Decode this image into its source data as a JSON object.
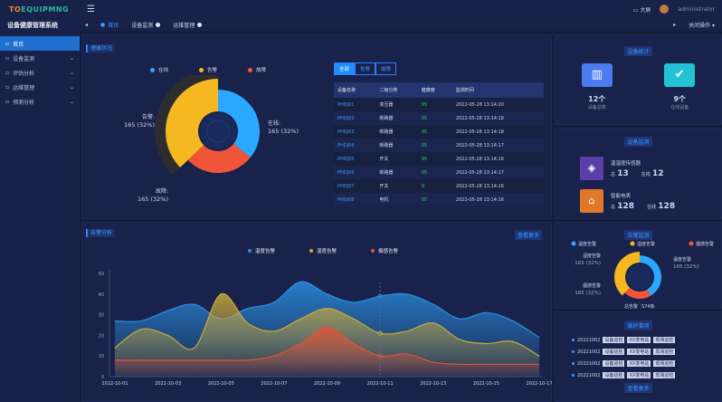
{
  "app": {
    "logo_a": "TO",
    "logo_b": "EQUIPMNG",
    "title": "设备健康管理系统"
  },
  "sidebar": {
    "items": [
      {
        "label": "首页",
        "active": true
      },
      {
        "label": "设备监测"
      },
      {
        "label": "评估分析"
      },
      {
        "label": "运维管理"
      },
      {
        "label": "预测分析"
      }
    ]
  },
  "header": {
    "bigscreen": "大屏",
    "username": "administrator",
    "close_ops": "关闭操作 ▾"
  },
  "tabs": [
    {
      "label": "首页"
    },
    {
      "label": "设备监测"
    },
    {
      "label": "运维管理"
    }
  ],
  "health": {
    "title": "健康状况",
    "legend": [
      "在线",
      "告警",
      "故障"
    ],
    "slices": [
      {
        "name": "在线",
        "value": 165,
        "pct": "32%"
      },
      {
        "name": "告警",
        "value": 165,
        "pct": "32%"
      },
      {
        "name": "故障",
        "value": 165,
        "pct": "32%"
      }
    ],
    "filters": [
      "全部",
      "告警",
      "故障"
    ],
    "columns": [
      "设备名称",
      "二级分类",
      "健康度",
      "监测时间"
    ],
    "rows": [
      [
        "PHDJ01",
        "变压器",
        "95",
        "2022-05-28 13:14:20"
      ],
      [
        "PHDJ02",
        "断路器",
        "95",
        "2022-05-28 13:14:18"
      ],
      [
        "PHDJ03",
        "断路器",
        "95",
        "2022-05-28 13:14:18"
      ],
      [
        "PHDJ04",
        "断路器",
        "95",
        "2022-05-28 13:14:17"
      ],
      [
        "PHDJ05",
        "开关",
        "95",
        "2022-05-28 13:14:16"
      ],
      [
        "PHDJ06",
        "断路器",
        "95",
        "2022-05-28 13:14:17"
      ],
      [
        "PHDJ07",
        "开关",
        "9",
        "2022-05-28 13:14:16"
      ],
      [
        "PHDJ08",
        "电机",
        "95",
        "2022-05-28 13:14:16"
      ]
    ]
  },
  "alarm_analysis": {
    "title": "告警分析",
    "more": "查看更多"
  },
  "chart_data": {
    "type": "area",
    "x": [
      "2022-10-01",
      "2022-10-02",
      "2022-10-03",
      "2022-10-04",
      "2022-10-05",
      "2022-10-06",
      "2022-10-07",
      "2022-10-08",
      "2022-10-09",
      "2022-10-10",
      "2022-10-11",
      "2022-10-12",
      "2022-10-13",
      "2022-10-14",
      "2022-10-15",
      "2022-10-16",
      "2022-10-17"
    ],
    "xticks": [
      "2022-10-01",
      "2022-10-03",
      "2022-10-05",
      "2022-10-07",
      "2022-10-09",
      "2022-10-11",
      "2022-10-13",
      "2022-10-15",
      "2022-10-17"
    ],
    "yticks": [
      0,
      10,
      20,
      30,
      40,
      50
    ],
    "ylim": [
      0,
      50
    ],
    "legend": "top",
    "series": [
      {
        "name": "温度告警",
        "color": "#2a8fe0",
        "values": [
          27,
          27,
          32,
          35,
          28,
          33,
          36,
          46,
          40,
          36,
          39,
          40,
          35,
          28,
          31,
          27,
          19
        ]
      },
      {
        "name": "湿度告警",
        "color": "#c9a93a",
        "values": [
          14,
          23,
          20,
          14,
          40,
          26,
          22,
          28,
          33,
          28,
          21,
          22,
          26,
          18,
          16,
          17,
          10
        ]
      },
      {
        "name": "烟感告警",
        "color": "#e0533a",
        "values": [
          8,
          8,
          8,
          8,
          8,
          8,
          10,
          16,
          24,
          16,
          10,
          11,
          7,
          6,
          6,
          6,
          6
        ]
      }
    ]
  },
  "stats": {
    "title": "设备统计",
    "items": [
      {
        "value": "12个",
        "label": "设备总数"
      },
      {
        "value": "9个",
        "label": "在线设备"
      }
    ]
  },
  "monitor": {
    "title": "设备监测",
    "items": [
      {
        "name": "温湿度传感器",
        "total_label": "总",
        "total": "13",
        "online_label": "在线",
        "online": "12"
      },
      {
        "name": "智能电表",
        "total_label": "总",
        "total": "128",
        "online_label": "在线",
        "online": "128"
      }
    ]
  },
  "alarm_monitor": {
    "title": "告警监测",
    "legend": [
      "温度告警",
      "湿度告警",
      "烟感告警"
    ],
    "labels": [
      {
        "name": "温度告警",
        "text": "165 (32%)"
      },
      {
        "name": "湿度告警",
        "text": "165 (32%)"
      },
      {
        "name": "烟感告警",
        "text": "165 (32%)"
      }
    ],
    "center": "总告警",
    "center_value": "574条"
  },
  "maintenance": {
    "title": "维护事项",
    "items": [
      [
        "20221002",
        "设备巡检",
        "XX变电站",
        "现场巡检"
      ],
      [
        "20221002",
        "设备巡检",
        "XX变电站",
        "现场巡检"
      ],
      [
        "20221002",
        "设备巡检",
        "XX变电站",
        "现场巡检"
      ],
      [
        "20221002",
        "设备巡检",
        "XX变电站",
        "现场巡检"
      ]
    ],
    "more": "查看更多"
  },
  "colors": {
    "blue": "#2aa8ff",
    "yellow": "#f5b820",
    "red": "#f0553a",
    "accent": "#1e6fd0"
  }
}
